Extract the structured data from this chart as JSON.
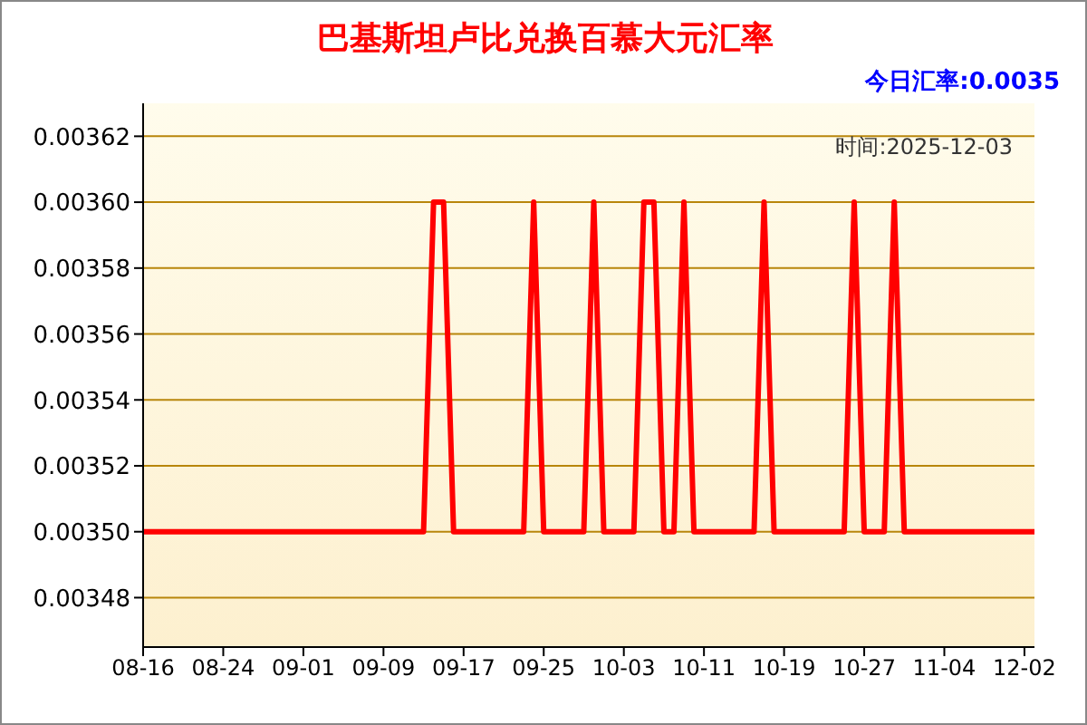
{
  "chart_data": {
    "type": "line",
    "title": "巴基斯坦卢比兑换百慕大元汇率",
    "subtitle": "今日汇率:0.0035",
    "annotations": [
      "时间:2025-12-03"
    ],
    "categories": [
      "08-16",
      null,
      null,
      null,
      null,
      null,
      null,
      null,
      "08-24",
      null,
      null,
      null,
      null,
      null,
      null,
      null,
      "09-01",
      null,
      null,
      null,
      null,
      null,
      null,
      null,
      "09-09",
      null,
      null,
      null,
      null,
      null,
      null,
      null,
      "09-17",
      null,
      null,
      null,
      null,
      null,
      null,
      null,
      "09-25",
      null,
      null,
      null,
      null,
      null,
      null,
      null,
      "10-03",
      null,
      null,
      null,
      null,
      null,
      null,
      null,
      "10-11",
      null,
      null,
      null,
      null,
      null,
      null,
      null,
      "10-19",
      null,
      null,
      null,
      null,
      null,
      null,
      null,
      "10-27",
      null,
      null,
      null,
      null,
      null,
      null,
      null,
      "11-04",
      null,
      null,
      null,
      null,
      null,
      null,
      null,
      "12-02",
      null
    ],
    "series": [
      {
        "color": "#ff0000",
        "values": [
          0.0035,
          0.0035,
          0.0035,
          0.0035,
          0.0035,
          0.0035,
          0.0035,
          0.0035,
          0.0035,
          0.0035,
          0.0035,
          0.0035,
          0.0035,
          0.0035,
          0.0035,
          0.0035,
          0.0035,
          0.0035,
          0.0035,
          0.0035,
          0.0035,
          0.0035,
          0.0035,
          0.0035,
          0.0035,
          0.0035,
          0.0035,
          0.0035,
          0.0035,
          0.0036,
          0.0036,
          0.0035,
          0.0035,
          0.0035,
          0.0035,
          0.0035,
          0.0035,
          0.0035,
          0.0035,
          0.0036,
          0.0035,
          0.0035,
          0.0035,
          0.0035,
          0.0035,
          0.0036,
          0.0035,
          0.0035,
          0.0035,
          0.0035,
          0.0036,
          0.0036,
          0.0035,
          0.0035,
          0.0036,
          0.0035,
          0.0035,
          0.0035,
          0.0035,
          0.0035,
          0.0035,
          0.0035,
          0.0036,
          0.0035,
          0.0035,
          0.0035,
          0.0035,
          0.0035,
          0.0035,
          0.0035,
          0.0035,
          0.0036,
          0.0035,
          0.0035,
          0.0035,
          0.0036,
          0.0035,
          0.0035,
          0.0035,
          0.0035,
          0.0035,
          0.0035,
          0.0035,
          0.0035,
          0.0035,
          0.0035,
          0.0035,
          0.0035,
          0.0035,
          0.0035
        ]
      }
    ],
    "ylim": [
      0.003465,
      0.00363
    ],
    "yticks": [
      {
        "value": 0.00348,
        "label": "0.00348"
      },
      {
        "value": 0.0035,
        "label": "0.00350"
      },
      {
        "value": 0.00352,
        "label": "0.00352"
      },
      {
        "value": 0.00354,
        "label": "0.00354"
      },
      {
        "value": 0.00356,
        "label": "0.00356"
      },
      {
        "value": 0.00358,
        "label": "0.00358"
      },
      {
        "value": 0.0036,
        "label": "0.00360"
      },
      {
        "value": 0.00362,
        "label": "0.00362"
      }
    ],
    "grid": "y",
    "marker": "none",
    "line_style": "solid"
  }
}
